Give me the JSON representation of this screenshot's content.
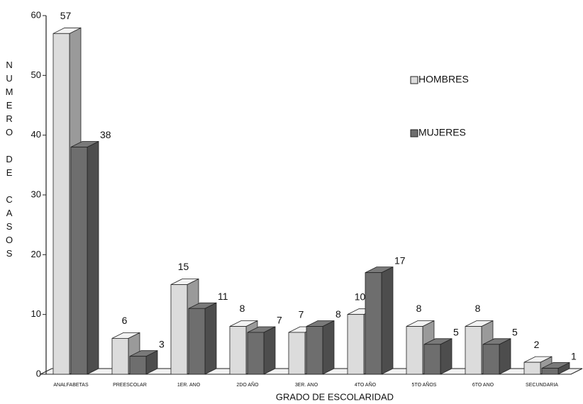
{
  "chart_data": {
    "type": "bar3d",
    "xlabel": "GRADO DE ESCOLARIDAD",
    "ylabel": "NUMERO DE CASOS",
    "categories": [
      "ANALFABETAS",
      "PREESCOLAR",
      "1ER. ANO",
      "2DO AÑO",
      "3ER. ANO",
      "4TO AÑO",
      "5TO AÑOS",
      "6TO ANO",
      "SECUNDARIA"
    ],
    "series": [
      {
        "name": "HOMBRES",
        "color": "#dcdcdc",
        "values": [
          57,
          6,
          15,
          8,
          7,
          10,
          8,
          8,
          2
        ]
      },
      {
        "name": "MUJERES",
        "color": "#6e6e6e",
        "values": [
          38,
          3,
          11,
          7,
          8,
          17,
          5,
          5,
          1
        ]
      }
    ],
    "ylim": [
      0,
      60
    ],
    "yticks": [
      0,
      10,
      20,
      30,
      40,
      50,
      60
    ]
  }
}
